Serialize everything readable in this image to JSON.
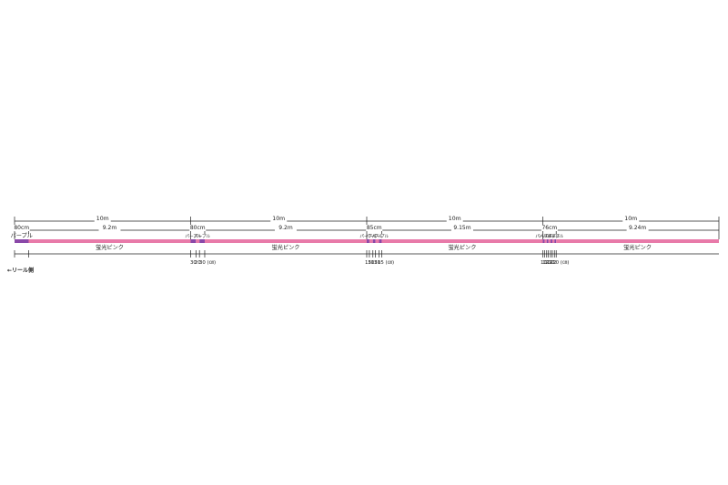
{
  "colors": {
    "pink": "#e87aa9",
    "purple": "#8a48a8",
    "line": "#222222"
  },
  "reel_label": "←リール側",
  "sections": [
    {
      "length": "10m",
      "sub_left": "80cm",
      "sub_right": "9.2m",
      "segments": [
        {
          "color": "purple",
          "label": "パープル",
          "length_cm": 80
        },
        {
          "color": "pink",
          "label": "蛍光ピンク",
          "length_cm": 920
        }
      ],
      "bottom_labels": []
    },
    {
      "length": "10m",
      "sub_left": "80cm",
      "sub_right": "9.2m",
      "segments": [
        {
          "color": "purple",
          "label": "パープル",
          "length_cm": 30
        },
        {
          "color": "pink",
          "label": "",
          "length_cm": 20
        },
        {
          "color": "purple",
          "label": "パープル",
          "length_cm": 30
        },
        {
          "color": "pink",
          "label": "蛍光ピンク",
          "length_cm": 920
        }
      ],
      "bottom_labels": [
        "30",
        "20",
        "30 (㎝)"
      ]
    },
    {
      "length": "10m",
      "sub_left": "85cm",
      "sub_right": "9.15m",
      "segments": [
        {
          "color": "purple",
          "label": "パープル",
          "length_cm": 15
        },
        {
          "color": "pink",
          "label": "",
          "length_cm": 20
        },
        {
          "color": "purple",
          "label": "パープル",
          "length_cm": 15
        },
        {
          "color": "pink",
          "label": "",
          "length_cm": 20
        },
        {
          "color": "purple",
          "label": "パープル",
          "length_cm": 15
        },
        {
          "color": "pink",
          "label": "蛍光ピンク",
          "length_cm": 915
        }
      ],
      "bottom_labels": [
        "15",
        "20",
        "15",
        "20",
        "15 (㎝)"
      ]
    },
    {
      "length": "10m",
      "sub_left": "76cm",
      "sub_right": "9.24m",
      "segments": [
        {
          "color": "purple",
          "label": "パープル",
          "length_cm": 10
        },
        {
          "color": "pink",
          "label": "",
          "length_cm": 12
        },
        {
          "color": "purple",
          "label": "パープル",
          "length_cm": 10
        },
        {
          "color": "pink",
          "label": "",
          "length_cm": 12
        },
        {
          "color": "purple",
          "label": "パープル",
          "length_cm": 10
        },
        {
          "color": "pink",
          "label": "",
          "length_cm": 12
        },
        {
          "color": "purple",
          "label": "パープル",
          "length_cm": 10
        },
        {
          "color": "pink",
          "label": "蛍光ピンク",
          "length_cm": 924
        }
      ],
      "bottom_labels": [
        "10",
        "12",
        "10",
        "12",
        "10",
        "12",
        "10 (㎝)"
      ]
    }
  ]
}
